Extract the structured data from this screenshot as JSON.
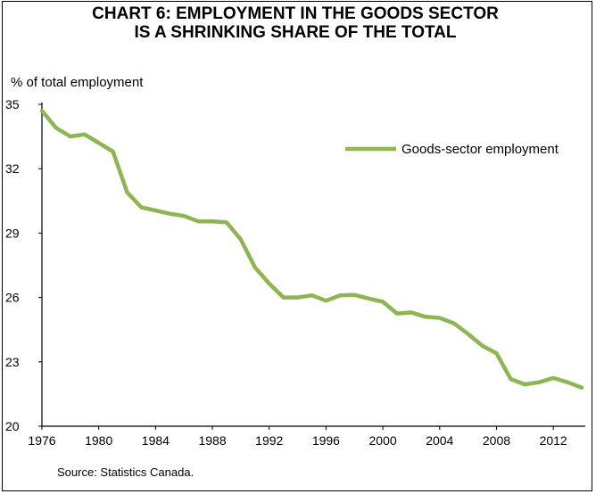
{
  "chart_data": {
    "type": "line",
    "title": "CHART 6: EMPLOYMENT IN THE GOODS SECTOR",
    "subtitle": "IS A SHRINKING SHARE OF THE TOTAL",
    "ylabel": "% of total employment",
    "xlabel": "",
    "source": "Source: Statistics Canada.",
    "ylim": [
      20,
      35
    ],
    "yticks": [
      20,
      23,
      26,
      29,
      32,
      35
    ],
    "xlim": [
      1976,
      2014
    ],
    "xticks": [
      1976,
      1980,
      1984,
      1988,
      1992,
      1996,
      2000,
      2004,
      2008,
      2012
    ],
    "grid": false,
    "legend_position": "top-right",
    "series": [
      {
        "name": "Goods-sector employment",
        "color": "#8db653",
        "x": [
          1976,
          1977,
          1978,
          1979,
          1980,
          1981,
          1982,
          1983,
          1984,
          1985,
          1986,
          1987,
          1988,
          1989,
          1990,
          1991,
          1992,
          1993,
          1994,
          1995,
          1996,
          1997,
          1998,
          1999,
          2000,
          2001,
          2002,
          2003,
          2004,
          2005,
          2006,
          2007,
          2008,
          2009,
          2010,
          2011,
          2012,
          2013,
          2014
        ],
        "values": [
          34.7,
          33.9,
          33.5,
          33.6,
          33.2,
          32.8,
          30.9,
          30.2,
          30.05,
          29.9,
          29.8,
          29.55,
          29.55,
          29.5,
          28.7,
          27.4,
          26.65,
          26.0,
          26.0,
          26.1,
          25.85,
          26.1,
          26.12,
          25.95,
          25.8,
          25.25,
          25.3,
          25.1,
          25.05,
          24.8,
          24.3,
          23.75,
          23.4,
          22.2,
          21.95,
          22.05,
          22.25,
          22.05,
          21.8
        ]
      }
    ]
  }
}
